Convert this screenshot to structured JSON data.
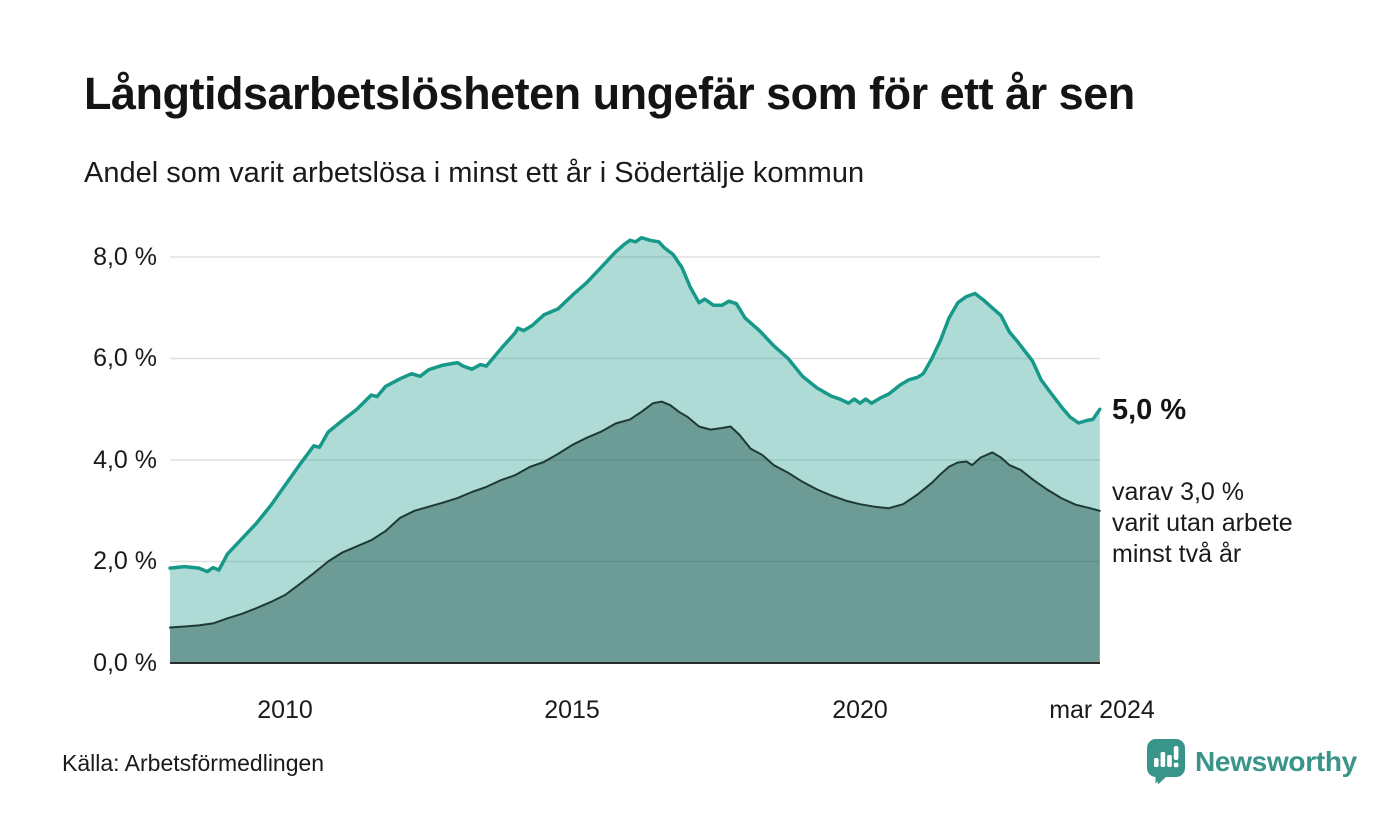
{
  "header": {
    "title": "Långtidsarbetslösheten ungefär som för ett år sen",
    "subtitle": "Andel som varit arbetslösa i minst ett år i Södertälje kommun"
  },
  "footer": {
    "source": "Källa: Arbetsförmedlingen",
    "logo_text": "Newsworthy"
  },
  "annotations": {
    "total_end_label": "5,0 %",
    "subset_end_label": "varav 3,0 %\nvarit utan arbete\nminst två år"
  },
  "colors": {
    "accent_teal": "#17998a",
    "teal_fill": "rgba(23,153,138,0.35)",
    "dark_line": "#1f3a35",
    "dark_fill": "rgba(31,77,70,0.45)",
    "grid": "#e0e0e0",
    "axis": "#2b2b2b",
    "logo_teal": "#39948a",
    "text": "#141414"
  },
  "chart_data": {
    "type": "area",
    "title": "Långtidsarbetslösheten ungefär som för ett år sen",
    "subtitle": "Andel som varit arbetslösa i minst ett år i Södertälje kommun",
    "unit": "%",
    "xlim": [
      2008,
      2024.17
    ],
    "ylim": [
      0,
      8.6
    ],
    "grid_on": true,
    "grid_values": [
      8,
      6,
      4,
      2
    ],
    "grid_color": "#e0e0e0",
    "axis_color": "#2b2b2b",
    "y_tick_labels": [
      "8,0 %",
      "6,0 %",
      "4,0 %",
      "2,0 %",
      "0,0 %"
    ],
    "x_tick_labels": [
      "2010",
      "2015",
      "2020",
      "mar 2024"
    ],
    "x_tick_years": [
      2010,
      2015,
      2020,
      2024.17
    ],
    "series": [
      {
        "name": "Andel arbetslösa minst ett år",
        "color": "#17998a",
        "fill": "rgba(23,153,138,0.35)",
        "end_value_label": "5,0 %",
        "points": [
          [
            2008.0,
            1.87
          ],
          [
            2008.25,
            1.9
          ],
          [
            2008.5,
            1.87
          ],
          [
            2008.65,
            1.8
          ],
          [
            2008.75,
            1.88
          ],
          [
            2008.85,
            1.83
          ],
          [
            2009.0,
            2.15
          ],
          [
            2009.25,
            2.45
          ],
          [
            2009.5,
            2.75
          ],
          [
            2009.75,
            3.1
          ],
          [
            2010.0,
            3.5
          ],
          [
            2010.25,
            3.9
          ],
          [
            2010.5,
            4.28
          ],
          [
            2010.6,
            4.25
          ],
          [
            2010.75,
            4.55
          ],
          [
            2011.0,
            4.78
          ],
          [
            2011.25,
            5.0
          ],
          [
            2011.5,
            5.28
          ],
          [
            2011.6,
            5.25
          ],
          [
            2011.75,
            5.45
          ],
          [
            2012.0,
            5.6
          ],
          [
            2012.2,
            5.7
          ],
          [
            2012.35,
            5.65
          ],
          [
            2012.5,
            5.78
          ],
          [
            2012.75,
            5.87
          ],
          [
            2013.0,
            5.92
          ],
          [
            2013.1,
            5.85
          ],
          [
            2013.25,
            5.79
          ],
          [
            2013.4,
            5.88
          ],
          [
            2013.5,
            5.85
          ],
          [
            2013.65,
            6.05
          ],
          [
            2013.8,
            6.25
          ],
          [
            2014.0,
            6.5
          ],
          [
            2014.05,
            6.6
          ],
          [
            2014.15,
            6.55
          ],
          [
            2014.3,
            6.65
          ],
          [
            2014.5,
            6.86
          ],
          [
            2014.75,
            6.98
          ],
          [
            2015.0,
            7.25
          ],
          [
            2015.25,
            7.5
          ],
          [
            2015.5,
            7.8
          ],
          [
            2015.75,
            8.1
          ],
          [
            2015.9,
            8.25
          ],
          [
            2016.0,
            8.33
          ],
          [
            2016.1,
            8.3
          ],
          [
            2016.2,
            8.38
          ],
          [
            2016.35,
            8.33
          ],
          [
            2016.5,
            8.3
          ],
          [
            2016.6,
            8.18
          ],
          [
            2016.75,
            8.05
          ],
          [
            2016.9,
            7.8
          ],
          [
            2017.05,
            7.4
          ],
          [
            2017.2,
            7.1
          ],
          [
            2017.3,
            7.17
          ],
          [
            2017.45,
            7.05
          ],
          [
            2017.6,
            7.05
          ],
          [
            2017.72,
            7.13
          ],
          [
            2017.85,
            7.08
          ],
          [
            2018.0,
            6.8
          ],
          [
            2018.25,
            6.55
          ],
          [
            2018.5,
            6.25
          ],
          [
            2018.75,
            6.0
          ],
          [
            2019.0,
            5.65
          ],
          [
            2019.25,
            5.42
          ],
          [
            2019.5,
            5.26
          ],
          [
            2019.65,
            5.2
          ],
          [
            2019.8,
            5.12
          ],
          [
            2019.9,
            5.2
          ],
          [
            2020.0,
            5.12
          ],
          [
            2020.1,
            5.2
          ],
          [
            2020.2,
            5.12
          ],
          [
            2020.35,
            5.22
          ],
          [
            2020.5,
            5.3
          ],
          [
            2020.7,
            5.48
          ],
          [
            2020.85,
            5.58
          ],
          [
            2021.0,
            5.63
          ],
          [
            2021.1,
            5.7
          ],
          [
            2021.25,
            6.0
          ],
          [
            2021.4,
            6.36
          ],
          [
            2021.55,
            6.8
          ],
          [
            2021.7,
            7.1
          ],
          [
            2021.85,
            7.22
          ],
          [
            2022.0,
            7.28
          ],
          [
            2022.15,
            7.15
          ],
          [
            2022.3,
            7.0
          ],
          [
            2022.45,
            6.85
          ],
          [
            2022.6,
            6.52
          ],
          [
            2022.75,
            6.32
          ],
          [
            2023.0,
            5.95
          ],
          [
            2023.15,
            5.58
          ],
          [
            2023.3,
            5.35
          ],
          [
            2023.5,
            5.05
          ],
          [
            2023.65,
            4.85
          ],
          [
            2023.8,
            4.73
          ],
          [
            2023.95,
            4.78
          ],
          [
            2024.05,
            4.8
          ],
          [
            2024.17,
            5.0
          ]
        ]
      },
      {
        "name": "Andel arbetslösa minst två år",
        "color": "#1f3a35",
        "fill": "rgba(31,77,70,0.45)",
        "end_value_label": "3,0 %",
        "points": [
          [
            2008.0,
            0.7
          ],
          [
            2008.25,
            0.72
          ],
          [
            2008.5,
            0.74
          ],
          [
            2008.75,
            0.78
          ],
          [
            2009.0,
            0.88
          ],
          [
            2009.25,
            0.97
          ],
          [
            2009.5,
            1.08
          ],
          [
            2009.75,
            1.2
          ],
          [
            2010.0,
            1.34
          ],
          [
            2010.25,
            1.55
          ],
          [
            2010.5,
            1.77
          ],
          [
            2010.75,
            2.0
          ],
          [
            2011.0,
            2.18
          ],
          [
            2011.25,
            2.3
          ],
          [
            2011.5,
            2.42
          ],
          [
            2011.75,
            2.6
          ],
          [
            2012.0,
            2.86
          ],
          [
            2012.25,
            3.0
          ],
          [
            2012.5,
            3.08
          ],
          [
            2012.75,
            3.16
          ],
          [
            2013.0,
            3.25
          ],
          [
            2013.25,
            3.37
          ],
          [
            2013.5,
            3.47
          ],
          [
            2013.75,
            3.6
          ],
          [
            2014.0,
            3.7
          ],
          [
            2014.25,
            3.86
          ],
          [
            2014.5,
            3.96
          ],
          [
            2014.75,
            4.12
          ],
          [
            2015.0,
            4.3
          ],
          [
            2015.25,
            4.44
          ],
          [
            2015.5,
            4.56
          ],
          [
            2015.75,
            4.72
          ],
          [
            2016.0,
            4.8
          ],
          [
            2016.2,
            4.95
          ],
          [
            2016.4,
            5.12
          ],
          [
            2016.55,
            5.15
          ],
          [
            2016.7,
            5.08
          ],
          [
            2016.85,
            4.95
          ],
          [
            2017.0,
            4.85
          ],
          [
            2017.2,
            4.66
          ],
          [
            2017.4,
            4.6
          ],
          [
            2017.6,
            4.63
          ],
          [
            2017.75,
            4.66
          ],
          [
            2017.9,
            4.5
          ],
          [
            2018.1,
            4.22
          ],
          [
            2018.3,
            4.1
          ],
          [
            2018.5,
            3.9
          ],
          [
            2018.75,
            3.75
          ],
          [
            2019.0,
            3.57
          ],
          [
            2019.25,
            3.42
          ],
          [
            2019.5,
            3.3
          ],
          [
            2019.75,
            3.2
          ],
          [
            2020.0,
            3.13
          ],
          [
            2020.25,
            3.08
          ],
          [
            2020.5,
            3.05
          ],
          [
            2020.75,
            3.13
          ],
          [
            2021.0,
            3.32
          ],
          [
            2021.25,
            3.55
          ],
          [
            2021.4,
            3.72
          ],
          [
            2021.55,
            3.87
          ],
          [
            2021.7,
            3.95
          ],
          [
            2021.85,
            3.97
          ],
          [
            2021.95,
            3.9
          ],
          [
            2022.1,
            4.05
          ],
          [
            2022.3,
            4.15
          ],
          [
            2022.45,
            4.05
          ],
          [
            2022.6,
            3.9
          ],
          [
            2022.8,
            3.8
          ],
          [
            2023.0,
            3.62
          ],
          [
            2023.25,
            3.42
          ],
          [
            2023.5,
            3.25
          ],
          [
            2023.75,
            3.12
          ],
          [
            2024.0,
            3.05
          ],
          [
            2024.17,
            3.0
          ]
        ]
      }
    ]
  }
}
